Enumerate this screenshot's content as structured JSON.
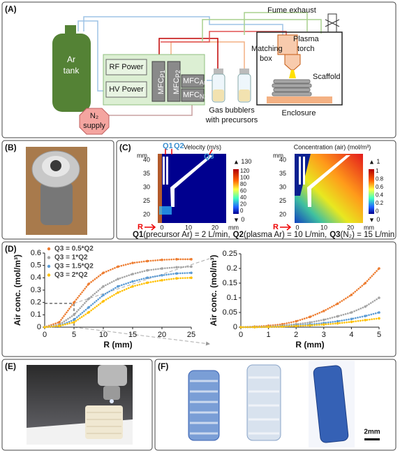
{
  "panel_labels": [
    "(A)",
    "(B)",
    "(C)",
    "(D)",
    "(E)",
    "(F)"
  ],
  "schematic": {
    "ar_tank": [
      "Ar",
      "tank"
    ],
    "n2_supply": [
      "N₂",
      "supply"
    ],
    "rf_power": "RF Power",
    "hv_power": "HV Power",
    "mfc": "MFC",
    "mfc_subs": [
      "P1",
      "P2",
      "Ar",
      "N2"
    ],
    "gas_bubblers": [
      "Gas bubblers",
      "with precursors"
    ],
    "fume_exhaust": "Fume exhaust",
    "plasma_torch": [
      "Plasma",
      "torch"
    ],
    "matching_box": [
      "Matching",
      "box"
    ],
    "scaffold": "Scaffold",
    "enclosure": "Enclosure"
  },
  "simulation": {
    "flows": [
      "Q1",
      "Q2",
      "Q3"
    ],
    "velocity_title": "Velocity (m/s)",
    "concentration_title": "Concentration (air) (mol/m³)",
    "unit": "mm",
    "r_label": "R",
    "y_ticks": [
      40,
      35,
      30,
      25,
      20
    ],
    "x_ticks": [
      0,
      10,
      20
    ],
    "velocity_max": 130,
    "velocity_ticks": [
      120,
      100,
      80,
      60,
      40,
      20,
      0
    ],
    "velocity_min": 0,
    "concentration_max": 1,
    "concentration_ticks": [
      1,
      0.8,
      0.6,
      0.4,
      0.2,
      0
    ],
    "concentration_min": 0,
    "caption": [
      {
        "q": "Q1",
        "text": "(precursor Ar) = 2 L/min,"
      },
      {
        "q": "Q2",
        "text": "(plasma Ar) = 10 L/min,"
      },
      {
        "q": "Q3",
        "text": "(N₂) = 15 L/min"
      }
    ]
  },
  "scale_bar": "2mm",
  "chart_data": [
    {
      "type": "scatter",
      "x_label": "R (mm)",
      "y_label": "Air conc. (mol/m³)",
      "x": [
        0,
        2.5,
        5,
        7.5,
        10,
        12.5,
        15,
        17.5,
        20,
        22.5,
        25
      ],
      "xlim": [
        0,
        25
      ],
      "xticks": [
        0,
        5,
        10,
        15,
        20,
        25
      ],
      "ylim": [
        0,
        0.6
      ],
      "yticks": [
        0,
        0.1,
        0.2,
        0.3,
        0.4,
        0.5,
        0.6
      ],
      "legend": "upper left",
      "series": [
        {
          "name": "Q3 = 0.5*Q2",
          "color": "#ed7d31",
          "values": [
            0,
            0.04,
            0.2,
            0.35,
            0.44,
            0.49,
            0.52,
            0.535,
            0.545,
            0.55,
            0.55
          ]
        },
        {
          "name": "Q3 = 1*Q2",
          "color": "#a5a5a5",
          "values": [
            0,
            0.02,
            0.1,
            0.23,
            0.33,
            0.39,
            0.43,
            0.46,
            0.475,
            0.485,
            0.49
          ]
        },
        {
          "name": "Q3 = 1.5*Q2",
          "color": "#5b9bd5",
          "values": [
            0,
            0.01,
            0.06,
            0.16,
            0.26,
            0.33,
            0.37,
            0.4,
            0.42,
            0.435,
            0.44
          ]
        },
        {
          "name": "Q3 = 2*Q2",
          "color": "#ffc000",
          "values": [
            0,
            0.01,
            0.04,
            0.12,
            0.21,
            0.28,
            0.33,
            0.36,
            0.38,
            0.395,
            0.4
          ]
        }
      ]
    },
    {
      "type": "scatter",
      "x_label": "R (mm)",
      "y_label": "Air conc. (mol/m³)",
      "x": [
        0,
        0.5,
        1,
        1.5,
        2,
        2.5,
        3,
        3.5,
        4,
        4.5,
        5
      ],
      "xlim": [
        0,
        5
      ],
      "xticks": [
        0,
        1,
        2,
        3,
        4,
        5
      ],
      "ylim": [
        0,
        0.25
      ],
      "yticks": [
        0,
        0.05,
        0.1,
        0.15,
        0.2,
        0.25
      ],
      "series": [
        {
          "color": "#ed7d31",
          "values": [
            0,
            0.002,
            0.005,
            0.01,
            0.02,
            0.035,
            0.055,
            0.08,
            0.11,
            0.15,
            0.2
          ]
        },
        {
          "color": "#a5a5a5",
          "values": [
            0,
            0.001,
            0.002,
            0.005,
            0.01,
            0.016,
            0.025,
            0.037,
            0.05,
            0.07,
            0.1
          ]
        },
        {
          "color": "#5b9bd5",
          "values": [
            0,
            0,
            0.001,
            0.003,
            0.006,
            0.009,
            0.014,
            0.02,
            0.028,
            0.038,
            0.05
          ]
        },
        {
          "color": "#ffc000",
          "values": [
            0,
            0,
            0.001,
            0.002,
            0.004,
            0.006,
            0.009,
            0.013,
            0.018,
            0.024,
            0.03
          ]
        }
      ]
    }
  ]
}
